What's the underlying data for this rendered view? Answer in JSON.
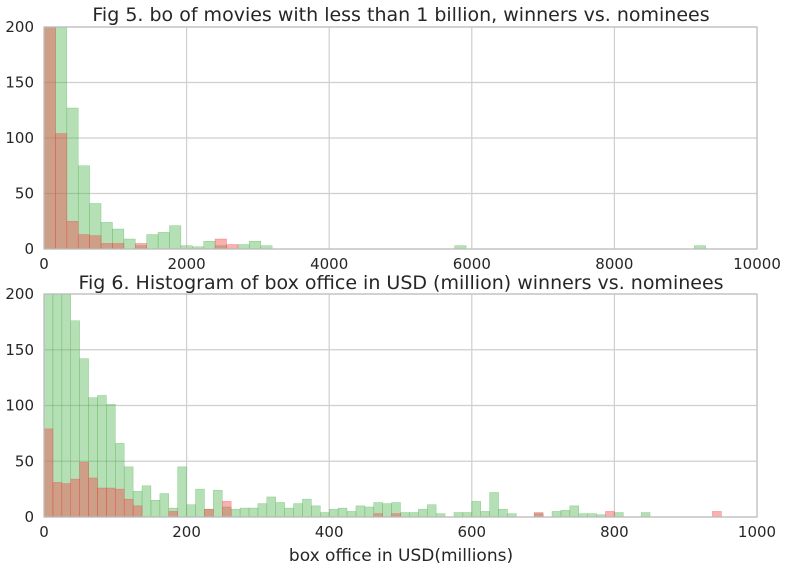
{
  "chart_data": [
    {
      "type": "histogram",
      "title": "Fig 5. bo of movies with less than 1 billion, winners vs. nominees",
      "xlabel": "",
      "ylabel": "",
      "xlim": [
        0,
        10000
      ],
      "ylim": [
        0,
        200
      ],
      "xticks": [
        "0",
        "2000",
        "4000",
        "6000",
        "8000",
        "10000"
      ],
      "yticks": [
        "0",
        "50",
        "100",
        "150",
        "200"
      ],
      "grid": true,
      "legend": "none",
      "bin_width": 160,
      "series": [
        {
          "color": "#5cb85c",
          "values": [
            200,
            200,
            127,
            75,
            41,
            24,
            18,
            9,
            3,
            13,
            15,
            21,
            3,
            2,
            7,
            3,
            0,
            4,
            7,
            3,
            0,
            0,
            0,
            0,
            0,
            0,
            0,
            0,
            0,
            0,
            0,
            0,
            0,
            0,
            0,
            0,
            3,
            0,
            0,
            0,
            0,
            0,
            0,
            0,
            0,
            0,
            0,
            0,
            0,
            0,
            0,
            0,
            0,
            0,
            0,
            0,
            0,
            3,
            0,
            0,
            0,
            0,
            0
          ]
        },
        {
          "color": "#f05050",
          "values": [
            200,
            104,
            25,
            13,
            12,
            5,
            5,
            0,
            5,
            0,
            0,
            0,
            0,
            0,
            0,
            9,
            4,
            0,
            0,
            0,
            0,
            0,
            0,
            0,
            0,
            0,
            0,
            0,
            0,
            0,
            0,
            0,
            0,
            0,
            0,
            0,
            0,
            0,
            0,
            0,
            0,
            0,
            0,
            0,
            0,
            0,
            0,
            0,
            0,
            0,
            0,
            0,
            0,
            0,
            0,
            0,
            0,
            0,
            0,
            0,
            0,
            0,
            0
          ]
        }
      ]
    },
    {
      "type": "histogram",
      "title": "Fig 6. Histogram of box office in USD (million) winners vs. nominees",
      "xlabel": "box office in USD(millions)",
      "ylabel": "",
      "xlim": [
        0,
        1000
      ],
      "ylim": [
        0,
        200
      ],
      "xticks": [
        "0",
        "200",
        "400",
        "600",
        "800",
        "1000"
      ],
      "yticks": [
        "0",
        "50",
        "100",
        "150",
        "200"
      ],
      "grid": true,
      "legend": "none",
      "bin_width": 12.5,
      "series": [
        {
          "color": "#5cb85c",
          "values": [
            200,
            200,
            200,
            176,
            142,
            107,
            109,
            101,
            66,
            45,
            23,
            28,
            15,
            21,
            8,
            45,
            11,
            25,
            7,
            24,
            9,
            7,
            8,
            8,
            12,
            18,
            13,
            8,
            12,
            16,
            10,
            4,
            7,
            8,
            5,
            10,
            9,
            13,
            12,
            13,
            4,
            4,
            7,
            11,
            3,
            0,
            4,
            4,
            14,
            5,
            22,
            7,
            3,
            0,
            0,
            3,
            0,
            5,
            6,
            10,
            3,
            3,
            2,
            0,
            4,
            0,
            0,
            4,
            0,
            0
          ]
        },
        {
          "color": "#f05050",
          "values": [
            79,
            31,
            30,
            34,
            49,
            35,
            26,
            26,
            25,
            16,
            10,
            0,
            0,
            0,
            5,
            0,
            0,
            0,
            7,
            0,
            14,
            0,
            0,
            0,
            0,
            0,
            0,
            0,
            0,
            0,
            0,
            0,
            0,
            0,
            0,
            0,
            0,
            3,
            0,
            3,
            0,
            0,
            0,
            0,
            0,
            0,
            0,
            0,
            0,
            0,
            0,
            0,
            0,
            0,
            0,
            4,
            0,
            0,
            0,
            0,
            0,
            0,
            0,
            5,
            0,
            0,
            0,
            0,
            0,
            0,
            0,
            0,
            0,
            0,
            0,
            5,
            0,
            0,
            0,
            0,
            0
          ]
        }
      ]
    }
  ]
}
